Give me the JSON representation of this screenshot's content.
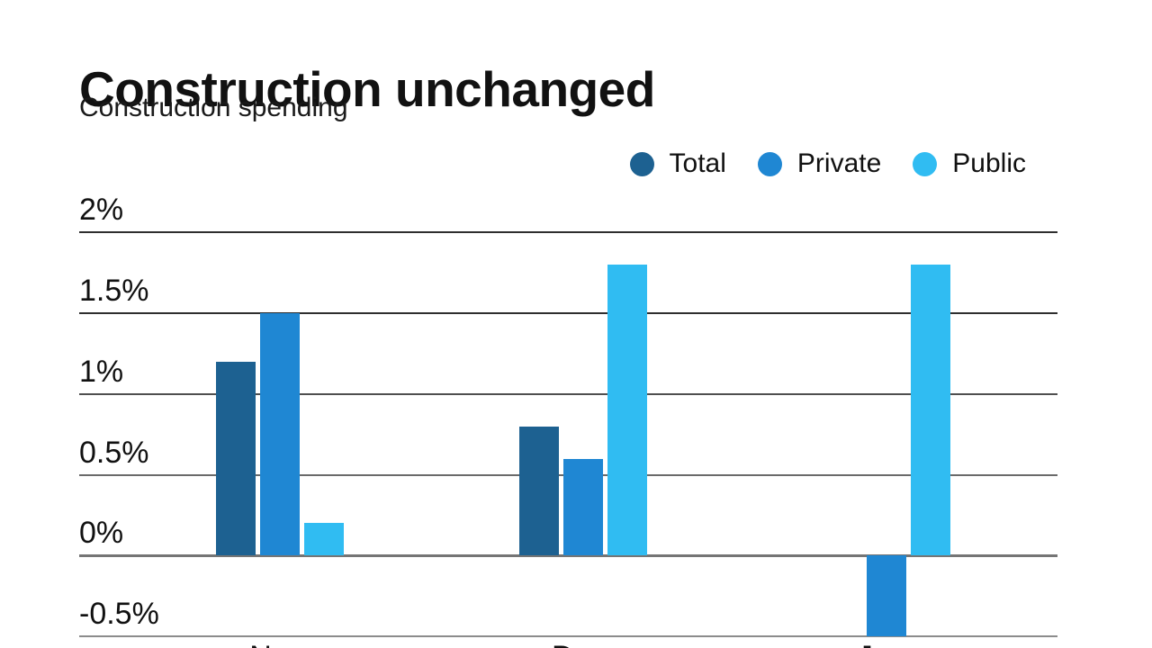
{
  "header": {
    "title": "Construction unchanged",
    "subtitle": "Construction spending"
  },
  "legend": {
    "items": [
      {
        "label": "Total",
        "color": "#1d6191",
        "icon": "circle"
      },
      {
        "label": "Private",
        "color": "#1f87d3",
        "icon": "circle"
      },
      {
        "label": "Public",
        "color": "#30bcf2",
        "icon": "circle"
      }
    ]
  },
  "chart_data": {
    "type": "bar",
    "title": "Construction unchanged",
    "subtitle": "Construction spending",
    "categories": [
      "Nov.",
      "Dec.",
      "Jan."
    ],
    "series": [
      {
        "name": "Total",
        "color": "#1d6191",
        "values": [
          1.2,
          0.8,
          0.0
        ]
      },
      {
        "name": "Private",
        "color": "#1f87d3",
        "values": [
          1.5,
          0.6,
          -0.5
        ]
      },
      {
        "name": "Public",
        "color": "#30bcf2",
        "values": [
          0.2,
          1.8,
          1.8
        ]
      }
    ],
    "unit": "%",
    "xlabel": "",
    "ylabel": "",
    "yticks": [
      "2%",
      "1.5%",
      "1%",
      "0.5%",
      "0%",
      "-0.5%"
    ],
    "ytick_values": [
      2,
      1.5,
      1,
      0.5,
      0,
      -0.5
    ],
    "ylim": [
      -0.5,
      2
    ],
    "grid": true,
    "legend_position": "top-right",
    "baseline_value": 0
  }
}
